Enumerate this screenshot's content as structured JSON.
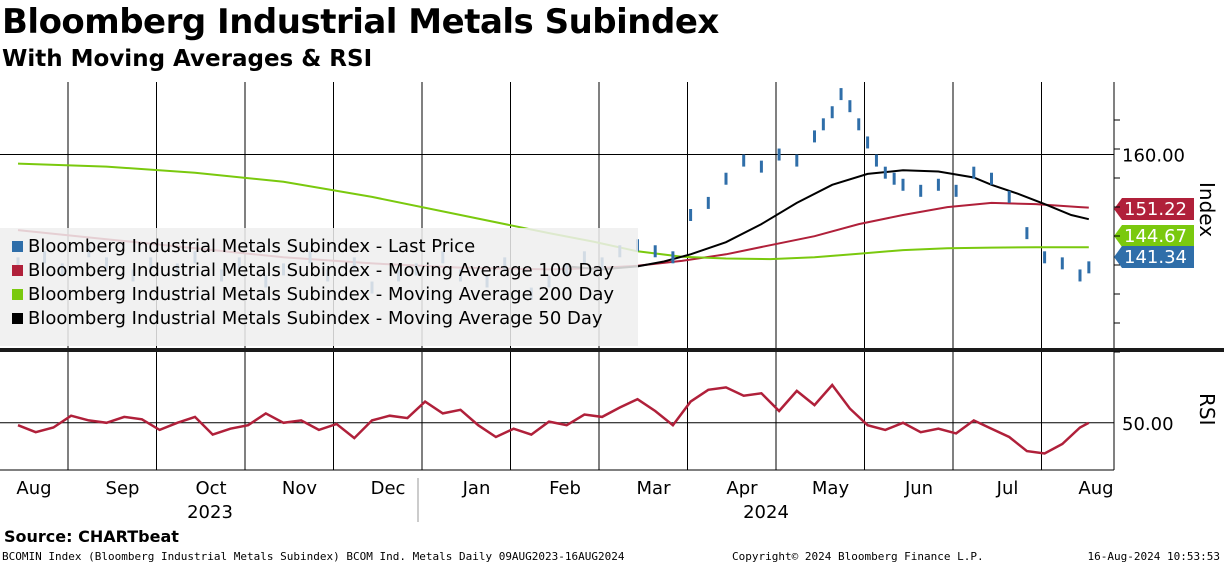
{
  "header": {
    "title": "Bloomberg Industrial Metals Subindex",
    "subtitle": "With Moving Averages & RSI"
  },
  "colors": {
    "price": "#2f6ea9",
    "ma100": "#b0203a",
    "ma200": "#7ac90e",
    "ma50": "#000000",
    "rsi": "#b0203a"
  },
  "chart_data": [
    {
      "type": "line",
      "name": "price-panel",
      "ylabel": "Index",
      "ylim": [
        128,
        172
      ],
      "yticks": [
        160
      ],
      "ytick_labels": [
        "160.00"
      ],
      "x_months": [
        "Aug",
        "Sep",
        "Oct",
        "Nov",
        "Dec",
        "Jan",
        "Feb",
        "Mar",
        "Apr",
        "May",
        "Jun",
        "Jul",
        "Aug"
      ],
      "x_years": [
        "2023",
        "2024"
      ],
      "legend": {
        "position": "left",
        "entries": [
          "Bloomberg Industrial Metals Subindex - Last Price",
          "Bloomberg Industrial Metals Subindex - Moving Average 100 Day",
          "Bloomberg Industrial Metals Subindex - Moving Average 200 Day",
          "Bloomberg Industrial Metals Subindex - Moving Average 50 Day"
        ]
      },
      "last_value_labels": [
        {
          "series": "ma100",
          "value": "151.22"
        },
        {
          "series": "ma200",
          "value": "144.67"
        },
        {
          "series": "price",
          "value": "141.34"
        }
      ],
      "series": [
        {
          "name": "Last Price",
          "key": "price",
          "x": [
            0.0,
            0.3,
            0.5,
            0.8,
            1.0,
            1.3,
            1.5,
            1.8,
            2.0,
            2.3,
            2.5,
            2.8,
            3.0,
            3.3,
            3.5,
            3.8,
            4.0,
            4.3,
            4.5,
            4.8,
            5.0,
            5.3,
            5.5,
            5.8,
            6.0,
            6.2,
            6.4,
            6.6,
            6.8,
            7.0,
            7.2,
            7.4,
            7.6,
            7.8,
            8.0,
            8.2,
            8.4,
            8.6,
            8.8,
            9.0,
            9.1,
            9.2,
            9.3,
            9.4,
            9.5,
            9.6,
            9.7,
            9.8,
            9.9,
            10.0,
            10.2,
            10.4,
            10.6,
            10.8,
            11.0,
            11.2,
            11.4,
            11.6,
            11.8,
            12.0,
            12.1
          ],
          "values": [
            142,
            143,
            141,
            144,
            142,
            140,
            142,
            141,
            143,
            140,
            142,
            139,
            141,
            143,
            140,
            142,
            138,
            140,
            141,
            143,
            140,
            139,
            142,
            137,
            139,
            141,
            143,
            142,
            144,
            145,
            144,
            143,
            150,
            152,
            156,
            159,
            158,
            160,
            159,
            163,
            165,
            167,
            170,
            168,
            165,
            162,
            159,
            157,
            156,
            155,
            154,
            155,
            154,
            157,
            156,
            153,
            147,
            143,
            142,
            140,
            141.34
          ]
        },
        {
          "name": "Moving Average 100 Day",
          "key": "ma100",
          "x": [
            0,
            1,
            2,
            3,
            4,
            5,
            6,
            6.5,
            7,
            7.5,
            8,
            8.5,
            9,
            9.5,
            10,
            10.5,
            11,
            11.5,
            12,
            12.1
          ],
          "values": [
            147.5,
            146.0,
            144.5,
            143.0,
            142.0,
            141.3,
            141.0,
            141.2,
            141.6,
            142.4,
            143.5,
            145.0,
            146.5,
            148.5,
            150.0,
            151.3,
            152.0,
            151.8,
            151.3,
            151.22
          ]
        },
        {
          "name": "Moving Average 200 Day",
          "key": "ma200",
          "x": [
            0,
            1,
            2,
            3,
            4,
            5,
            6,
            6.5,
            7,
            7.5,
            8,
            8.5,
            9,
            9.5,
            10,
            10.5,
            11,
            11.5,
            12,
            12.1
          ],
          "values": [
            158.5,
            158.0,
            157.0,
            155.5,
            153.0,
            150.0,
            147.0,
            145.6,
            144.0,
            143.1,
            142.8,
            142.7,
            143.0,
            143.6,
            144.2,
            144.5,
            144.6,
            144.65,
            144.67,
            144.67
          ]
        },
        {
          "name": "Moving Average 50 Day",
          "key": "ma50",
          "x": [
            6.2,
            6.6,
            7.0,
            7.3,
            7.6,
            8.0,
            8.4,
            8.8,
            9.2,
            9.6,
            10.0,
            10.4,
            10.8,
            11.0,
            11.3,
            11.6,
            11.9,
            12.1
          ],
          "values": [
            141.5,
            141.0,
            141.5,
            142.3,
            143.5,
            145.5,
            148.5,
            152.0,
            155.0,
            156.8,
            157.4,
            157.2,
            156.2,
            155.0,
            153.5,
            151.8,
            150.0,
            149.3
          ]
        }
      ]
    },
    {
      "type": "line",
      "name": "rsi-panel",
      "ylabel": "RSI",
      "ylim": [
        10,
        110
      ],
      "yticks": [
        50
      ],
      "ytick_labels": [
        "50.00"
      ],
      "series": [
        {
          "name": "RSI",
          "key": "rsi",
          "x": [
            0.0,
            0.2,
            0.4,
            0.6,
            0.8,
            1.0,
            1.2,
            1.4,
            1.6,
            1.8,
            2.0,
            2.2,
            2.4,
            2.6,
            2.8,
            3.0,
            3.2,
            3.4,
            3.6,
            3.8,
            4.0,
            4.2,
            4.4,
            4.6,
            4.8,
            5.0,
            5.2,
            5.4,
            5.6,
            5.8,
            6.0,
            6.2,
            6.4,
            6.6,
            6.8,
            7.0,
            7.2,
            7.4,
            7.6,
            7.8,
            8.0,
            8.2,
            8.4,
            8.6,
            8.8,
            9.0,
            9.2,
            9.4,
            9.6,
            9.8,
            10.0,
            10.2,
            10.4,
            10.6,
            10.8,
            11.0,
            11.2,
            11.4,
            11.6,
            11.8,
            12.0,
            12.1
          ],
          "values": [
            48,
            42,
            46,
            56,
            52,
            50,
            55,
            53,
            44,
            50,
            55,
            40,
            45,
            48,
            58,
            50,
            52,
            44,
            49,
            37,
            52,
            56,
            54,
            68,
            58,
            61,
            48,
            38,
            45,
            40,
            51,
            48,
            57,
            55,
            63,
            70,
            60,
            48,
            68,
            78,
            80,
            73,
            75,
            60,
            77,
            65,
            82,
            62,
            48,
            44,
            50,
            42,
            45,
            41,
            52,
            45,
            38,
            26,
            24,
            32,
            46,
            50
          ]
        }
      ]
    }
  ],
  "footer": {
    "source": "Source: CHARTbeat",
    "left": "BCOMIN Index (Bloomberg Industrial Metals Subindex) BCOM Ind. Metals  Daily 09AUG2023-16AUG2024",
    "mid": "Copyright© 2024 Bloomberg Finance L.P.",
    "right": "16-Aug-2024 10:53:53"
  }
}
